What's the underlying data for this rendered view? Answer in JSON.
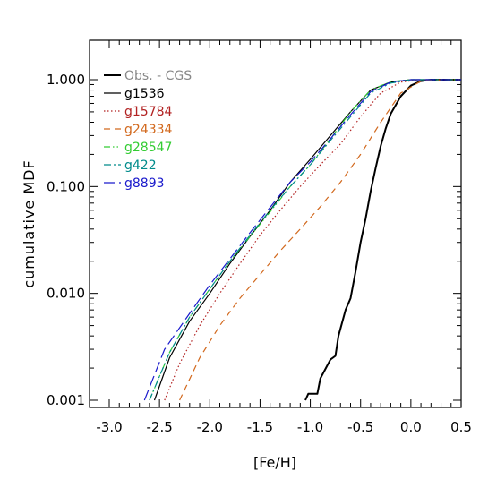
{
  "chart_data": {
    "type": "line",
    "title": "",
    "xlabel": "[Fe/H]",
    "ylabel": "cumulative MDF",
    "xlim": [
      -3.0,
      0.5
    ],
    "ylim": [
      0.001,
      1.0
    ],
    "yscale": "log",
    "grid": false,
    "legend_placement": "top-left",
    "x_ticks": [
      "-3.0",
      "-2.5",
      "-2.0",
      "-1.5",
      "-1.0",
      "-0.5",
      "0.0",
      "0.5"
    ],
    "x_tick_values": [
      -3.0,
      -2.5,
      -2.0,
      -1.5,
      -1.0,
      -0.5,
      0.0,
      0.5
    ],
    "y_ticks": [
      "0.001",
      "0.010",
      "0.100",
      "1.000"
    ],
    "y_tick_values": [
      0.001,
      0.01,
      0.1,
      1.0
    ],
    "series": [
      {
        "name": "Obs. - CGS",
        "color": "#000000",
        "dash": "solid",
        "width": 2,
        "legend_text_color": "#888888",
        "points": [
          [
            -1.05,
            0.001
          ],
          [
            -1.02,
            0.00115
          ],
          [
            -0.93,
            0.00115
          ],
          [
            -0.9,
            0.0016
          ],
          [
            -0.8,
            0.0024
          ],
          [
            -0.75,
            0.0026
          ],
          [
            -0.72,
            0.004
          ],
          [
            -0.68,
            0.0055
          ],
          [
            -0.65,
            0.007
          ],
          [
            -0.6,
            0.009
          ],
          [
            -0.55,
            0.016
          ],
          [
            -0.5,
            0.03
          ],
          [
            -0.45,
            0.05
          ],
          [
            -0.4,
            0.09
          ],
          [
            -0.35,
            0.15
          ],
          [
            -0.3,
            0.24
          ],
          [
            -0.25,
            0.35
          ],
          [
            -0.2,
            0.48
          ],
          [
            -0.1,
            0.7
          ],
          [
            0.0,
            0.88
          ],
          [
            0.1,
            0.97
          ],
          [
            0.2,
            1.0
          ],
          [
            0.5,
            1.0
          ]
        ]
      },
      {
        "name": "g1536",
        "color": "#000000",
        "dash": "solid",
        "width": 1.2,
        "legend_text_color": "#000000",
        "points": [
          [
            -2.55,
            0.001
          ],
          [
            -2.4,
            0.0025
          ],
          [
            -2.2,
            0.0055
          ],
          [
            -2.0,
            0.01
          ],
          [
            -1.8,
            0.019
          ],
          [
            -1.6,
            0.034
          ],
          [
            -1.4,
            0.06
          ],
          [
            -1.2,
            0.11
          ],
          [
            -1.0,
            0.18
          ],
          [
            -0.8,
            0.3
          ],
          [
            -0.6,
            0.5
          ],
          [
            -0.4,
            0.8
          ],
          [
            -0.2,
            0.95
          ],
          [
            0.0,
            1.0
          ],
          [
            0.5,
            1.0
          ]
        ]
      },
      {
        "name": "g15784",
        "color": "#b22222",
        "dash": "dotted",
        "width": 1.2,
        "legend_text_color": "#b22222",
        "points": [
          [
            -2.45,
            0.001
          ],
          [
            -2.3,
            0.0022
          ],
          [
            -2.1,
            0.005
          ],
          [
            -1.9,
            0.01
          ],
          [
            -1.7,
            0.019
          ],
          [
            -1.5,
            0.035
          ],
          [
            -1.3,
            0.06
          ],
          [
            -1.1,
            0.1
          ],
          [
            -0.9,
            0.16
          ],
          [
            -0.7,
            0.25
          ],
          [
            -0.5,
            0.45
          ],
          [
            -0.3,
            0.75
          ],
          [
            -0.1,
            0.95
          ],
          [
            0.1,
            1.0
          ],
          [
            0.5,
            1.0
          ]
        ]
      },
      {
        "name": "g24334",
        "color": "#d2691e",
        "dash": "dashed",
        "width": 1.2,
        "legend_text_color": "#d2691e",
        "points": [
          [
            -2.3,
            0.001
          ],
          [
            -2.1,
            0.0025
          ],
          [
            -1.9,
            0.005
          ],
          [
            -1.7,
            0.009
          ],
          [
            -1.5,
            0.015
          ],
          [
            -1.3,
            0.025
          ],
          [
            -1.1,
            0.04
          ],
          [
            -0.9,
            0.065
          ],
          [
            -0.7,
            0.11
          ],
          [
            -0.5,
            0.2
          ],
          [
            -0.3,
            0.4
          ],
          [
            -0.1,
            0.75
          ],
          [
            0.1,
            0.97
          ],
          [
            0.3,
            1.0
          ],
          [
            0.5,
            1.0
          ]
        ]
      },
      {
        "name": "g28547",
        "color": "#33cc33",
        "dash": "dashdotdot",
        "width": 1.2,
        "legend_text_color": "#33cc33",
        "points": [
          [
            -2.6,
            0.001
          ],
          [
            -2.4,
            0.0028
          ],
          [
            -2.2,
            0.006
          ],
          [
            -2.0,
            0.011
          ],
          [
            -1.8,
            0.02
          ],
          [
            -1.6,
            0.034
          ],
          [
            -1.4,
            0.058
          ],
          [
            -1.2,
            0.1
          ],
          [
            -1.0,
            0.16
          ],
          [
            -0.8,
            0.28
          ],
          [
            -0.6,
            0.5
          ],
          [
            -0.4,
            0.8
          ],
          [
            -0.2,
            0.96
          ],
          [
            0.0,
            1.0
          ],
          [
            0.5,
            1.0
          ]
        ]
      },
      {
        "name": "g422",
        "color": "#008b8b",
        "dash": "dashdot",
        "width": 1.2,
        "legend_text_color": "#008b8b",
        "points": [
          [
            -2.6,
            0.001
          ],
          [
            -2.4,
            0.0028
          ],
          [
            -2.2,
            0.006
          ],
          [
            -2.0,
            0.011
          ],
          [
            -1.8,
            0.02
          ],
          [
            -1.6,
            0.035
          ],
          [
            -1.4,
            0.06
          ],
          [
            -1.2,
            0.1
          ],
          [
            -1.0,
            0.16
          ],
          [
            -0.8,
            0.27
          ],
          [
            -0.6,
            0.45
          ],
          [
            -0.4,
            0.75
          ],
          [
            -0.2,
            0.93
          ],
          [
            0.0,
            1.0
          ],
          [
            0.5,
            1.0
          ]
        ]
      },
      {
        "name": "g8893",
        "color": "#1a1acc",
        "dash": "longdash",
        "width": 1.2,
        "legend_text_color": "#1a1acc",
        "points": [
          [
            -2.65,
            0.001
          ],
          [
            -2.45,
            0.003
          ],
          [
            -2.2,
            0.0065
          ],
          [
            -2.0,
            0.012
          ],
          [
            -1.8,
            0.021
          ],
          [
            -1.6,
            0.037
          ],
          [
            -1.4,
            0.064
          ],
          [
            -1.2,
            0.11
          ],
          [
            -1.0,
            0.17
          ],
          [
            -0.8,
            0.28
          ],
          [
            -0.6,
            0.47
          ],
          [
            -0.4,
            0.77
          ],
          [
            -0.2,
            0.95
          ],
          [
            0.0,
            1.0
          ],
          [
            0.5,
            1.0
          ]
        ]
      }
    ]
  }
}
